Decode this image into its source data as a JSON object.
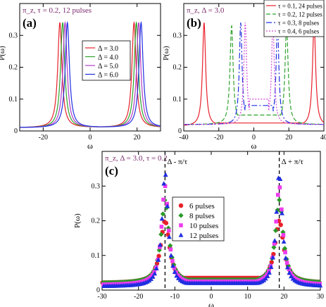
{
  "chart_data": [
    {
      "panel_label": "(a)",
      "type": "line",
      "annotation": "π_z, τ = 0.2, 12 pulses",
      "xlabel": "ω",
      "ylabel": "P(ω)",
      "xlim": [
        -30,
        30
      ],
      "ylim": [
        0,
        0.4
      ],
      "x_ticks": [
        -20,
        0,
        20
      ],
      "x_tick_labels": [
        "-20",
        "0",
        "20"
      ],
      "y_ticks": [
        0,
        0.1,
        0.2,
        0.3
      ],
      "y_tick_labels": [
        "0",
        "0.1",
        "0.2",
        "0.3"
      ],
      "legend_position": "center",
      "series": [
        {
          "name": "Δ = 3.0",
          "color": "#e8202a",
          "dash": "",
          "peaks": [
            -12.9,
            18.7
          ],
          "peak_height": 0.34,
          "width": 1.6,
          "base": 0.01,
          "center_level": 0.008
        },
        {
          "name": "Δ = 4.0",
          "color": "#2da32d",
          "dash": "",
          "peaks": [
            -11.7,
            19.7
          ],
          "peak_height": 0.34,
          "width": 1.6,
          "base": 0.01,
          "center_level": 0.008
        },
        {
          "name": "Δ = 5.0",
          "color": "#b23cc7",
          "dash": "",
          "peaks": [
            -10.7,
            20.7
          ],
          "peak_height": 0.34,
          "width": 1.6,
          "base": 0.01,
          "center_level": 0.008
        },
        {
          "name": "Δ = 6.0",
          "color": "#1f2ee0",
          "dash": "",
          "peaks": [
            -9.7,
            21.7
          ],
          "peak_height": 0.34,
          "width": 1.6,
          "base": 0.01,
          "center_level": 0.008
        }
      ]
    },
    {
      "panel_label": "(b)",
      "type": "line",
      "annotation": "π_z, Δ = 3.0",
      "xlabel": "ω",
      "ylabel": "P(ω)",
      "xlim": [
        -40,
        40
      ],
      "ylim": [
        0,
        0.4
      ],
      "x_ticks": [
        -40,
        -20,
        0,
        20,
        40
      ],
      "x_tick_labels": [
        "-40",
        "-20",
        "0",
        "20",
        "40"
      ],
      "y_ticks": [
        0,
        0.1,
        0.2,
        0.3
      ],
      "y_tick_labels": [
        "0",
        "0.1",
        "0.2",
        "0.3"
      ],
      "legend_position": "top-right",
      "series": [
        {
          "name": "τ = 0.1, 24 pulses",
          "color": "#e8202a",
          "dash": "",
          "peaks": [
            -28.4,
            34.4
          ],
          "peak_height": 0.34,
          "width": 1.6,
          "base": 0.015,
          "center_level": 0.025
        },
        {
          "name": "τ = 0.2, 12 pulses",
          "color": "#2da32d",
          "dash": "6,3",
          "peaks": [
            -12.7,
            18.7
          ],
          "peak_height": 0.33,
          "width": 1.6,
          "base": 0.02,
          "center_level": 0.05
        },
        {
          "name": "τ = 0.3, 8 pulses",
          "color": "#1f2ee0",
          "dash": "8,3,2,3",
          "peaks": [
            -7.5,
            13.5
          ],
          "peak_height": 0.34,
          "width": 1.4,
          "base": 0.02,
          "center_level": 0.08
        },
        {
          "name": "τ = 0.4, 6 pulses",
          "color": "#d04ad8",
          "dash": "2,2",
          "peaks": [
            -4.9,
            10.9
          ],
          "peak_height": 0.34,
          "width": 1.4,
          "base": 0.02,
          "center_level": 0.1
        }
      ]
    },
    {
      "panel_label": "(c)",
      "type": "scatter",
      "annotation": "π_z, Δ = 3.0, τ = 0.2",
      "xlabel": "ω",
      "ylabel": "P(ω)",
      "xlim": [
        -30,
        30
      ],
      "ylim": [
        0,
        0.4
      ],
      "x_ticks": [
        -30,
        -20,
        -10,
        0,
        10,
        20,
        30
      ],
      "x_tick_labels": [
        "-30",
        "-20",
        "-10",
        "0",
        "10",
        "20",
        "30"
      ],
      "y_ticks": [
        0,
        0.1,
        0.2,
        0.3
      ],
      "y_tick_labels": [
        "0",
        "0.1",
        "0.2",
        "0.3"
      ],
      "legend_position": "center",
      "vlines": [
        {
          "x": -12.7,
          "label": "Δ - π/τ"
        },
        {
          "x": 18.7,
          "label": "Δ + π/τ"
        }
      ],
      "series": [
        {
          "name": "6 pulses",
          "color": "#e8202a",
          "marker": "circle",
          "peaks": [
            -12.7,
            18.7
          ],
          "peak_height": 0.2,
          "width": 2.2,
          "base": 0.02,
          "center_level": 0.035
        },
        {
          "name": "8 pulses",
          "color": "#2a9a2a",
          "marker": "diamond",
          "peaks": [
            -12.7,
            18.7
          ],
          "peak_height": 0.26,
          "width": 1.9,
          "base": 0.02,
          "center_level": 0.03
        },
        {
          "name": "10 pulses",
          "color": "#ee3cee",
          "marker": "square",
          "peaks": [
            -12.7,
            18.7
          ],
          "peak_height": 0.3,
          "width": 1.7,
          "base": 0.015,
          "center_level": 0.025
        },
        {
          "name": "12 pulses",
          "color": "#1f2ee0",
          "marker": "triangle",
          "peaks": [
            -12.7,
            18.7
          ],
          "peak_height": 0.34,
          "width": 1.5,
          "base": 0.01,
          "center_level": 0.02
        }
      ]
    }
  ]
}
